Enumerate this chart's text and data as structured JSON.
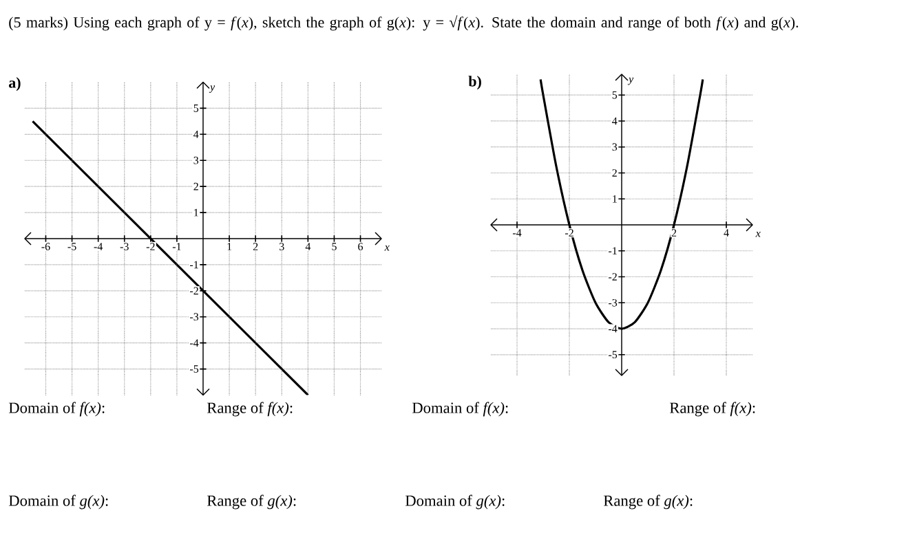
{
  "chart_data": [
    {
      "type": "line",
      "title": "(5 marks) Using each graph of y = *f*(*x*), sketch the graph of g(*x*): y = √*f*(*x*). State the domain and range of both *f*(*x*) and g(*x*).",
      "subtitle": "a)",
      "xlabel": "x",
      "ylabel": "y",
      "xlim": [
        -6.8,
        6.8
      ],
      "ylim": [
        -6,
        6
      ],
      "xticks": [
        -6,
        -5,
        -4,
        -3,
        -2,
        -1,
        1,
        2,
        3,
        4,
        5,
        6
      ],
      "yticks": [
        -5,
        -4,
        -3,
        -2,
        -1,
        1,
        2,
        3,
        4,
        5
      ],
      "grid": true,
      "color": "#000000",
      "x": [
        -6.5,
        4
      ],
      "values": [
        4.5,
        -6
      ],
      "annotations": [
        "Domain of *f(x)*:",
        "Range of *f(x)*:",
        "Domain of *g(x)*:",
        "Range of *g(x)*:"
      ]
    },
    {
      "type": "line",
      "subtitle": "b)",
      "xlabel": "x",
      "ylabel": "y",
      "xlim": [
        -5,
        5
      ],
      "ylim": [
        -5.8,
        5.8
      ],
      "xticks": [
        -4,
        -2,
        2,
        4
      ],
      "yticks": [
        -5,
        -4,
        -3,
        -2,
        -1,
        1,
        2,
        3,
        4,
        5
      ],
      "grid": true,
      "color": "#000000",
      "x": [
        -3.1,
        -3,
        -2.5,
        -2,
        -1.5,
        -1,
        -0.5,
        0,
        0.5,
        1,
        1.5,
        2,
        2.5,
        3,
        3.1
      ],
      "values": [
        5.6,
        5,
        2.25,
        0,
        -1.75,
        -3,
        -3.75,
        -4,
        -3.75,
        -3,
        -1.75,
        0,
        2.25,
        5,
        5.6
      ],
      "annotations": [
        "Domain of *f(x)*:",
        "Range of *f(x)*:",
        "Domain of *g(x)*:",
        "Range of *g(x)*:"
      ]
    }
  ]
}
